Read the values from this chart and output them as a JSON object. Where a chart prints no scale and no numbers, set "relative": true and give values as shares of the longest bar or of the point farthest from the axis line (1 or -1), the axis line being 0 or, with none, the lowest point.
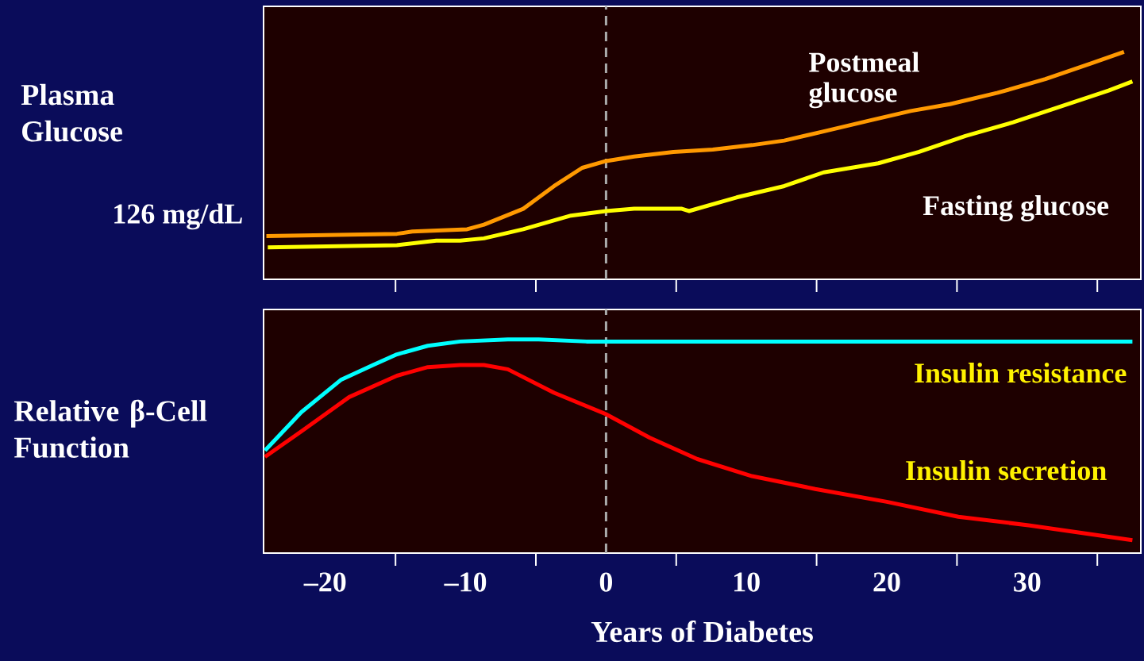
{
  "chart_data": [
    {
      "type": "line",
      "relative": true,
      "ylabel": "Plasma Glucose",
      "xlim": [
        -24.4,
        38.1
      ],
      "xticks": [
        {
          "value": -15,
          "label": null
        },
        {
          "value": -5,
          "label": null
        },
        {
          "value": 5,
          "label": null
        },
        {
          "value": 15,
          "label": null
        },
        {
          "value": 25,
          "label": null
        },
        {
          "value": 35,
          "label": null
        }
      ],
      "tick_labels": false,
      "grid": false,
      "marker": "none",
      "line_style": "solid",
      "annotations": [
        "126 mg/dL"
      ],
      "ref_lines": [
        {
          "axis": "x",
          "value": 0,
          "color": "#aaaaaa",
          "line_style": "dashed"
        }
      ],
      "series": [
        {
          "name": "Postmeal glucose",
          "color": "#ff9900",
          "x": [
            -24.2,
            -14.9,
            -13.8,
            -9.9,
            -8.7,
            -5.9,
            -3.7,
            -1.7,
            0,
            2.0,
            4.8,
            7.6,
            10.4,
            12.7,
            15.5,
            18.9,
            21.7,
            24.5,
            27.9,
            31.3,
            34.6,
            36.9
          ],
          "values": [
            0.19,
            0.2,
            0.21,
            0.22,
            0.24,
            0.31,
            0.41,
            0.49,
            0.52,
            0.54,
            0.56,
            0.57,
            0.59,
            0.61,
            0.65,
            0.7,
            0.74,
            0.77,
            0.82,
            0.88,
            0.95,
            1.0
          ]
        },
        {
          "name": "Fasting glucose",
          "color": "#ffff00",
          "x": [
            -24.1,
            -14.9,
            -12.1,
            -10.4,
            -8.7,
            -5.9,
            -2.5,
            0,
            2.0,
            5.4,
            5.9,
            9.3,
            12.7,
            15.5,
            19.4,
            22.3,
            25.6,
            29.0,
            32.4,
            35.8,
            37.5
          ],
          "values": [
            0.14,
            0.15,
            0.17,
            0.17,
            0.18,
            0.22,
            0.28,
            0.3,
            0.31,
            0.31,
            0.3,
            0.36,
            0.41,
            0.47,
            0.51,
            0.56,
            0.63,
            0.69,
            0.76,
            0.83,
            0.87
          ]
        }
      ]
    },
    {
      "type": "line",
      "relative": true,
      "ylabel": "Relative β-Cell Function",
      "xlabel": "Years of Diabetes",
      "xlim": [
        -24.4,
        38.1
      ],
      "xticks": [
        {
          "value": -20,
          "label": "–20"
        },
        {
          "value": -15,
          "label": null
        },
        {
          "value": -10,
          "label": "–10"
        },
        {
          "value": -5,
          "label": null
        },
        0,
        {
          "value": 5,
          "label": null
        },
        10,
        {
          "value": 15,
          "label": null
        },
        20,
        {
          "value": 25,
          "label": null
        },
        30,
        {
          "value": 35,
          "label": null
        }
      ],
      "tick_labels": "x",
      "grid": false,
      "marker": "none",
      "line_style": "solid",
      "ref_lines": [
        {
          "axis": "x",
          "value": 0,
          "color": "#aaaaaa",
          "line_style": "dashed"
        }
      ],
      "series": [
        {
          "name": "Insulin resistance",
          "color": "#00ffff",
          "x": [
            -24.3,
            -21.7,
            -18.9,
            -16.6,
            -14.9,
            -12.7,
            -10.4,
            -7.0,
            -4.8,
            -1.4,
            2.0,
            13.2,
            24.5,
            37.5
          ],
          "values": [
            0.48,
            0.66,
            0.81,
            0.88,
            0.93,
            0.97,
            0.99,
            1.0,
            1.0,
            0.99,
            0.99,
            0.99,
            0.99,
            0.99
          ]
        },
        {
          "name": "Insulin secretion",
          "color": "#ff0000",
          "x": [
            -24.3,
            -21.7,
            -18.3,
            -14.9,
            -12.7,
            -10.4,
            -8.7,
            -7.0,
            -3.7,
            0,
            3.1,
            6.5,
            10.4,
            14.9,
            20.0,
            25.1,
            30.1,
            37.5
          ],
          "values": [
            0.45,
            0.57,
            0.73,
            0.83,
            0.87,
            0.88,
            0.88,
            0.86,
            0.75,
            0.65,
            0.54,
            0.44,
            0.36,
            0.3,
            0.24,
            0.17,
            0.13,
            0.06
          ]
        }
      ]
    }
  ]
}
